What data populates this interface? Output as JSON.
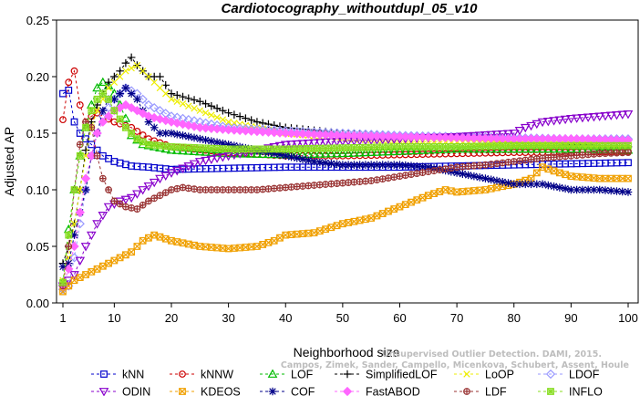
{
  "chart_data": {
    "type": "line",
    "title": "Cardiotocography_withoutdupl_05_v10",
    "xlabel": "Neighborhood size",
    "ylabel": "Adjusted AP",
    "xlim": [
      1,
      100
    ],
    "ylim": [
      0,
      0.25
    ],
    "x_ticks": [
      1,
      10,
      20,
      30,
      40,
      50,
      60,
      70,
      80,
      90,
      100
    ],
    "x_tick_labels": [
      "1",
      "10",
      "20",
      "30",
      "40",
      "50",
      "60",
      "70",
      "80",
      "90",
      "100"
    ],
    "y_ticks": [
      0,
      0.05,
      0.1,
      0.15,
      0.2,
      0.25
    ],
    "y_tick_labels": [
      "0.00",
      "0.05",
      "0.10",
      "0.15",
      "0.20",
      "0.25"
    ],
    "watermark_lines": [
      "Unsupervised Outlier Detection. DAMI, 2015.",
      "Campos, Zimek, Sander, Campello, Micenkova, Schubert, Assent, Houle"
    ],
    "legend_position": "bottom",
    "series": [
      {
        "name": "kNN",
        "color": "#0000cc",
        "marker": "square",
        "points": [
          [
            1,
            0.185
          ],
          [
            2,
            0.188
          ],
          [
            3,
            0.16
          ],
          [
            4,
            0.15
          ],
          [
            5,
            0.145
          ],
          [
            6,
            0.14
          ],
          [
            7,
            0.135
          ],
          [
            8,
            0.13
          ],
          [
            10,
            0.125
          ],
          [
            13,
            0.121
          ],
          [
            16,
            0.12
          ],
          [
            20,
            0.118
          ],
          [
            30,
            0.119
          ],
          [
            40,
            0.12
          ],
          [
            50,
            0.12
          ],
          [
            60,
            0.12
          ],
          [
            70,
            0.121
          ],
          [
            80,
            0.122
          ],
          [
            90,
            0.123
          ],
          [
            100,
            0.124
          ]
        ]
      },
      {
        "name": "kNNW",
        "color": "#cc0000",
        "marker": "circle",
        "points": [
          [
            1,
            0.162
          ],
          [
            2,
            0.195
          ],
          [
            3,
            0.205
          ],
          [
            4,
            0.175
          ],
          [
            5,
            0.16
          ],
          [
            6,
            0.165
          ],
          [
            7,
            0.168
          ],
          [
            8,
            0.165
          ],
          [
            10,
            0.16
          ],
          [
            13,
            0.155
          ],
          [
            16,
            0.145
          ],
          [
            20,
            0.138
          ],
          [
            30,
            0.133
          ],
          [
            40,
            0.13
          ],
          [
            50,
            0.13
          ],
          [
            60,
            0.131
          ],
          [
            70,
            0.132
          ],
          [
            80,
            0.133
          ],
          [
            90,
            0.133
          ],
          [
            100,
            0.134
          ]
        ]
      },
      {
        "name": "LOF",
        "color": "#00bb00",
        "marker": "triangle-up",
        "points": [
          [
            1,
            0.018
          ],
          [
            2,
            0.065
          ],
          [
            3,
            0.1
          ],
          [
            4,
            0.13
          ],
          [
            5,
            0.155
          ],
          [
            6,
            0.175
          ],
          [
            7,
            0.19
          ],
          [
            8,
            0.195
          ],
          [
            9,
            0.192
          ],
          [
            10,
            0.185
          ],
          [
            11,
            0.175
          ],
          [
            12,
            0.163
          ],
          [
            13,
            0.148
          ],
          [
            15,
            0.14
          ],
          [
            20,
            0.135
          ],
          [
            30,
            0.132
          ],
          [
            40,
            0.131
          ],
          [
            50,
            0.132
          ],
          [
            60,
            0.134
          ],
          [
            70,
            0.136
          ],
          [
            80,
            0.136
          ],
          [
            90,
            0.136
          ],
          [
            100,
            0.135
          ]
        ]
      },
      {
        "name": "SimplifiedLOF",
        "color": "#000000",
        "marker": "plus",
        "points": [
          [
            1,
            0.035
          ],
          [
            2,
            0.05
          ],
          [
            3,
            0.07
          ],
          [
            4,
            0.1
          ],
          [
            5,
            0.135
          ],
          [
            6,
            0.16
          ],
          [
            7,
            0.175
          ],
          [
            8,
            0.185
          ],
          [
            9,
            0.195
          ],
          [
            10,
            0.2
          ],
          [
            11,
            0.205
          ],
          [
            12,
            0.212
          ],
          [
            13,
            0.217
          ],
          [
            14,
            0.21
          ],
          [
            16,
            0.2
          ],
          [
            18,
            0.2
          ],
          [
            20,
            0.185
          ],
          [
            25,
            0.178
          ],
          [
            30,
            0.168
          ],
          [
            35,
            0.16
          ],
          [
            40,
            0.155
          ],
          [
            50,
            0.15
          ],
          [
            60,
            0.147
          ],
          [
            70,
            0.145
          ],
          [
            80,
            0.142
          ],
          [
            90,
            0.14
          ],
          [
            100,
            0.138
          ]
        ]
      },
      {
        "name": "LoOP",
        "color": "#eeee00",
        "marker": "cross",
        "points": [
          [
            1,
            0.02
          ],
          [
            2,
            0.04
          ],
          [
            3,
            0.07
          ],
          [
            4,
            0.1
          ],
          [
            5,
            0.13
          ],
          [
            6,
            0.155
          ],
          [
            7,
            0.17
          ],
          [
            8,
            0.18
          ],
          [
            9,
            0.19
          ],
          [
            10,
            0.195
          ],
          [
            12,
            0.205
          ],
          [
            14,
            0.21
          ],
          [
            16,
            0.2
          ],
          [
            18,
            0.19
          ],
          [
            20,
            0.18
          ],
          [
            25,
            0.17
          ],
          [
            30,
            0.16
          ],
          [
            40,
            0.15
          ],
          [
            50,
            0.145
          ],
          [
            60,
            0.143
          ],
          [
            70,
            0.142
          ],
          [
            80,
            0.14
          ],
          [
            90,
            0.14
          ],
          [
            100,
            0.14
          ]
        ]
      },
      {
        "name": "LDOF",
        "color": "#9999ff",
        "marker": "diamond",
        "points": [
          [
            1,
            0.012
          ],
          [
            2,
            0.015
          ],
          [
            3,
            0.04
          ],
          [
            4,
            0.07
          ],
          [
            5,
            0.1
          ],
          [
            6,
            0.13
          ],
          [
            7,
            0.15
          ],
          [
            8,
            0.165
          ],
          [
            10,
            0.18
          ],
          [
            12,
            0.19
          ],
          [
            14,
            0.185
          ],
          [
            16,
            0.175
          ],
          [
            20,
            0.165
          ],
          [
            25,
            0.16
          ],
          [
            30,
            0.155
          ],
          [
            40,
            0.152
          ],
          [
            50,
            0.15
          ],
          [
            60,
            0.148
          ],
          [
            70,
            0.147
          ],
          [
            80,
            0.146
          ],
          [
            90,
            0.145
          ],
          [
            100,
            0.145
          ]
        ]
      },
      {
        "name": "ODIN",
        "color": "#8800cc",
        "marker": "triangle-down",
        "points": [
          [
            1,
            0.015
          ],
          [
            3,
            0.025
          ],
          [
            5,
            0.05
          ],
          [
            7,
            0.07
          ],
          [
            9,
            0.085
          ],
          [
            11,
            0.09
          ],
          [
            13,
            0.093
          ],
          [
            15,
            0.1
          ],
          [
            18,
            0.11
          ],
          [
            20,
            0.115
          ],
          [
            25,
            0.125
          ],
          [
            30,
            0.13
          ],
          [
            35,
            0.135
          ],
          [
            40,
            0.14
          ],
          [
            50,
            0.143
          ],
          [
            60,
            0.145
          ],
          [
            70,
            0.147
          ],
          [
            80,
            0.15
          ],
          [
            82,
            0.155
          ],
          [
            85,
            0.16
          ],
          [
            90,
            0.163
          ],
          [
            95,
            0.165
          ],
          [
            100,
            0.167
          ]
        ]
      },
      {
        "name": "KDEOS",
        "color": "#f0a000",
        "marker": "square-x",
        "points": [
          [
            1,
            0.01
          ],
          [
            3,
            0.02
          ],
          [
            5,
            0.025
          ],
          [
            7,
            0.03
          ],
          [
            9,
            0.035
          ],
          [
            11,
            0.04
          ],
          [
            13,
            0.045
          ],
          [
            15,
            0.055
          ],
          [
            17,
            0.06
          ],
          [
            20,
            0.055
          ],
          [
            25,
            0.05
          ],
          [
            30,
            0.048
          ],
          [
            35,
            0.05
          ],
          [
            38,
            0.055
          ],
          [
            40,
            0.06
          ],
          [
            45,
            0.062
          ],
          [
            50,
            0.07
          ],
          [
            55,
            0.075
          ],
          [
            60,
            0.085
          ],
          [
            65,
            0.095
          ],
          [
            68,
            0.1
          ],
          [
            70,
            0.098
          ],
          [
            75,
            0.1
          ],
          [
            80,
            0.105
          ],
          [
            83,
            0.11
          ],
          [
            85,
            0.12
          ],
          [
            88,
            0.115
          ],
          [
            90,
            0.112
          ],
          [
            95,
            0.11
          ],
          [
            100,
            0.11
          ]
        ]
      },
      {
        "name": "COF",
        "color": "#000088",
        "marker": "asterisk",
        "points": [
          [
            1,
            0.032
          ],
          [
            2,
            0.035
          ],
          [
            3,
            0.06
          ],
          [
            4,
            0.08
          ],
          [
            5,
            0.1
          ],
          [
            6,
            0.13
          ],
          [
            7,
            0.15
          ],
          [
            8,
            0.17
          ],
          [
            9,
            0.18
          ],
          [
            10,
            0.18
          ],
          [
            12,
            0.19
          ],
          [
            14,
            0.18
          ],
          [
            16,
            0.16
          ],
          [
            18,
            0.15
          ],
          [
            20,
            0.15
          ],
          [
            25,
            0.145
          ],
          [
            30,
            0.14
          ],
          [
            35,
            0.135
          ],
          [
            40,
            0.13
          ],
          [
            45,
            0.125
          ],
          [
            50,
            0.122
          ],
          [
            60,
            0.122
          ],
          [
            65,
            0.12
          ],
          [
            70,
            0.115
          ],
          [
            75,
            0.11
          ],
          [
            80,
            0.105
          ],
          [
            85,
            0.105
          ],
          [
            90,
            0.1
          ],
          [
            95,
            0.1
          ],
          [
            100,
            0.098
          ]
        ]
      },
      {
        "name": "FastABOD",
        "color": "#ff66ff",
        "marker": "diamond-filled",
        "points": [
          [
            1,
            0.015
          ],
          [
            2,
            0.03
          ],
          [
            3,
            0.05
          ],
          [
            4,
            0.08
          ],
          [
            5,
            0.11
          ],
          [
            6,
            0.13
          ],
          [
            7,
            0.15
          ],
          [
            8,
            0.16
          ],
          [
            10,
            0.17
          ],
          [
            12,
            0.175
          ],
          [
            14,
            0.17
          ],
          [
            16,
            0.165
          ],
          [
            20,
            0.16
          ],
          [
            25,
            0.155
          ],
          [
            30,
            0.153
          ],
          [
            40,
            0.15
          ],
          [
            50,
            0.148
          ],
          [
            60,
            0.147
          ],
          [
            70,
            0.146
          ],
          [
            80,
            0.145
          ],
          [
            90,
            0.145
          ],
          [
            100,
            0.144
          ]
        ]
      },
      {
        "name": "LDF",
        "color": "#993333",
        "marker": "circle-plus",
        "points": [
          [
            1,
            0.015
          ],
          [
            2,
            0.05
          ],
          [
            3,
            0.1
          ],
          [
            4,
            0.14
          ],
          [
            5,
            0.16
          ],
          [
            6,
            0.155
          ],
          [
            7,
            0.13
          ],
          [
            8,
            0.11
          ],
          [
            10,
            0.09
          ],
          [
            12,
            0.085
          ],
          [
            14,
            0.083
          ],
          [
            16,
            0.09
          ],
          [
            18,
            0.095
          ],
          [
            20,
            0.1
          ],
          [
            22,
            0.102
          ],
          [
            25,
            0.1
          ],
          [
            30,
            0.1
          ],
          [
            35,
            0.1
          ],
          [
            40,
            0.102
          ],
          [
            45,
            0.104
          ],
          [
            50,
            0.106
          ],
          [
            55,
            0.108
          ],
          [
            60,
            0.112
          ],
          [
            65,
            0.116
          ],
          [
            70,
            0.12
          ],
          [
            75,
            0.122
          ],
          [
            80,
            0.125
          ],
          [
            85,
            0.128
          ],
          [
            90,
            0.13
          ],
          [
            95,
            0.132
          ],
          [
            100,
            0.133
          ]
        ]
      },
      {
        "name": "INFLO",
        "color": "#88dd22",
        "marker": "square-star",
        "points": [
          [
            1,
            0.018
          ],
          [
            2,
            0.06
          ],
          [
            3,
            0.1
          ],
          [
            4,
            0.13
          ],
          [
            5,
            0.155
          ],
          [
            6,
            0.17
          ],
          [
            7,
            0.18
          ],
          [
            8,
            0.185
          ],
          [
            9,
            0.18
          ],
          [
            10,
            0.17
          ],
          [
            12,
            0.155
          ],
          [
            14,
            0.145
          ],
          [
            16,
            0.14
          ],
          [
            20,
            0.138
          ],
          [
            30,
            0.136
          ],
          [
            40,
            0.136
          ],
          [
            50,
            0.137
          ],
          [
            60,
            0.138
          ],
          [
            70,
            0.138
          ],
          [
            80,
            0.139
          ],
          [
            90,
            0.139
          ],
          [
            100,
            0.139
          ]
        ]
      }
    ]
  }
}
